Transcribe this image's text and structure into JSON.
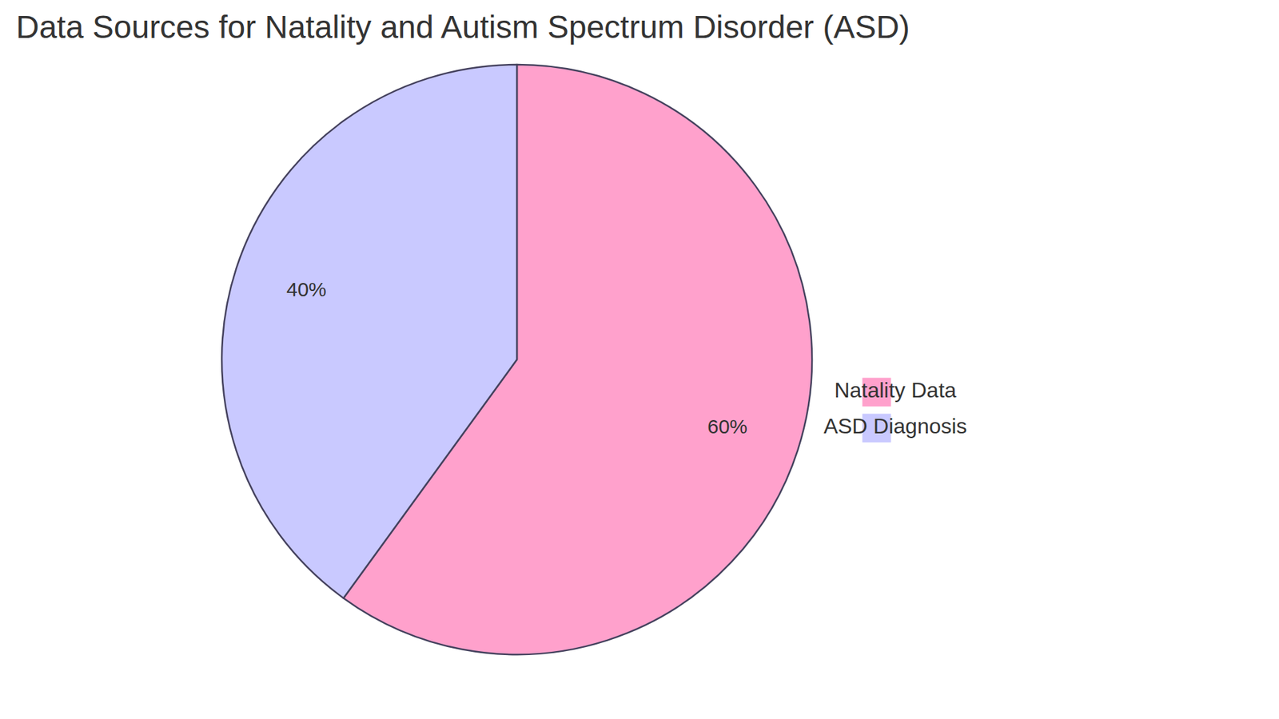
{
  "chart_data": {
    "type": "pie",
    "title": "Data Sources for Natality and Autism Spectrum Disorder (ASD)",
    "categories": [
      "Natality Data",
      "ASD Diagnosis"
    ],
    "values": [
      60,
      40
    ],
    "colors": [
      "#ffa1cc",
      "#c9c9ff"
    ],
    "data_labels": true,
    "value_labels": [
      "60%",
      "40%"
    ],
    "legend": "right"
  }
}
